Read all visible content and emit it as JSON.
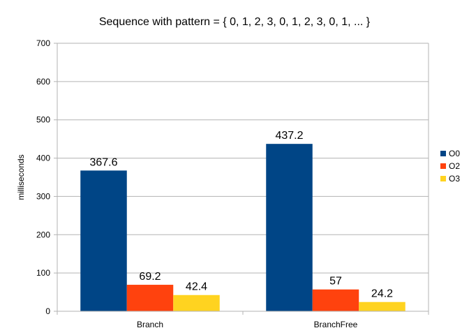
{
  "chart_data": {
    "type": "bar",
    "title": "Sequence with pattern = { 0, 1, 2, 3, 0, 1, 2, 3, 0, 1, ... }",
    "xlabel": "",
    "ylabel": "milliseconds",
    "ylim": [
      0,
      700
    ],
    "yticks": [
      0,
      100,
      200,
      300,
      400,
      500,
      600,
      700
    ],
    "categories": [
      "Branch",
      "BranchFree"
    ],
    "series": [
      {
        "name": "O0",
        "color": "#004586",
        "values": [
          367.6,
          437.2
        ],
        "labels": [
          "367.6",
          "437.2"
        ]
      },
      {
        "name": "O2",
        "color": "#ff420e",
        "values": [
          69.2,
          57
        ],
        "labels": [
          "69.2",
          "57"
        ]
      },
      {
        "name": "O3",
        "color": "#ffd320",
        "values": [
          42.4,
          24.2
        ],
        "labels": [
          "42.4",
          "24.2"
        ]
      }
    ],
    "grid": true,
    "legend": "right"
  }
}
